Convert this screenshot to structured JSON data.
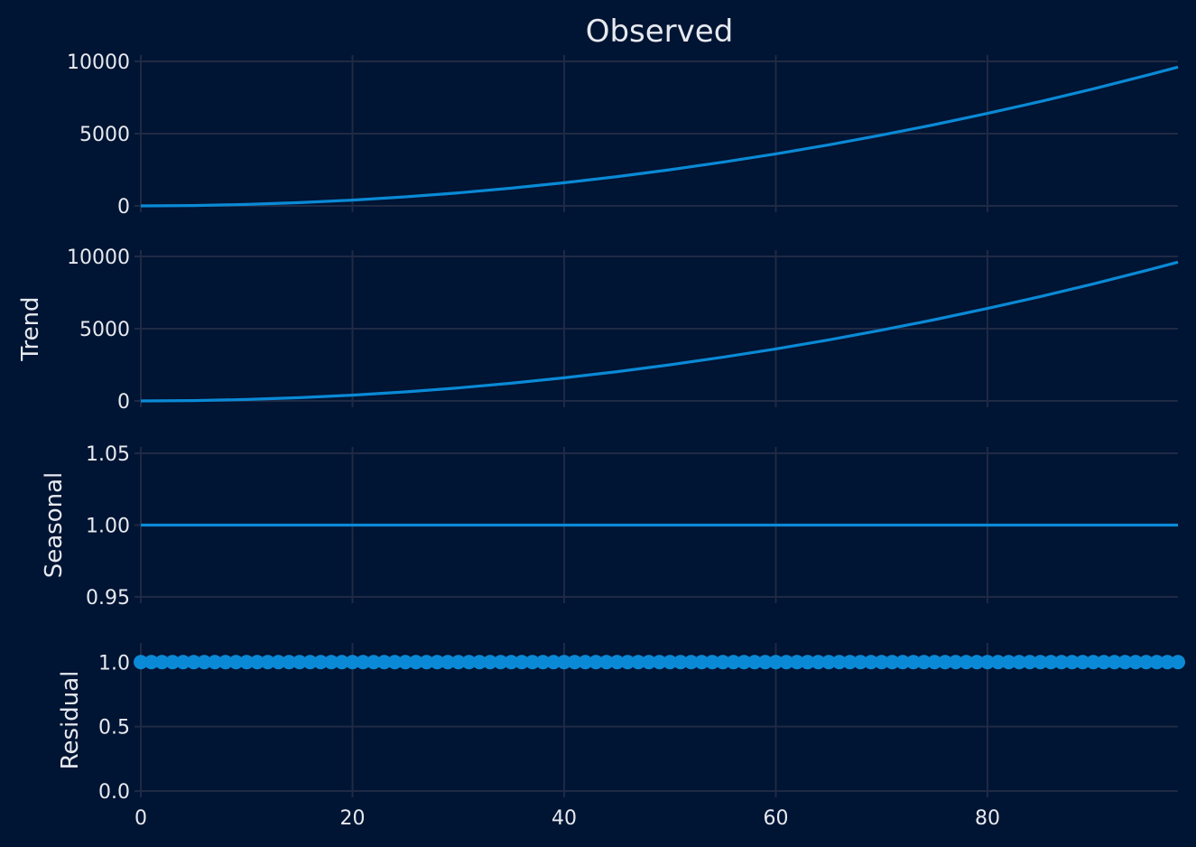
{
  "colors": {
    "background": "#001433",
    "grid": "#1f2a44",
    "series": "#0a8ad6",
    "text": "#e6e9ef"
  },
  "chart_data": {
    "type": "line",
    "layout": "stacked-subplots-shared-x",
    "shared_x": {
      "lim": [
        0,
        98
      ],
      "ticks": [
        0,
        20,
        40,
        60,
        80
      ],
      "tick_labels": [
        "0",
        "20",
        "40",
        "60",
        "80"
      ],
      "label": ""
    },
    "grid": true,
    "legend": "none",
    "panels": [
      {
        "id": "observed",
        "type": "line",
        "title": "Observed",
        "ylabel": "",
        "ylim": [
          0,
          10000
        ],
        "yticks": [
          0,
          5000,
          10000
        ],
        "ytick_labels": [
          "0",
          "5000",
          "10000"
        ],
        "series": [
          {
            "x": [
              0,
              5,
              10,
              15,
              20,
              25,
              30,
              35,
              40,
              45,
              50,
              55,
              60,
              65,
              70,
              75,
              80,
              85,
              90,
              95,
              98
            ],
            "y": [
              0,
              25,
              100,
              225,
              400,
              625,
              900,
              1225,
              1600,
              2025,
              2500,
              3025,
              3600,
              4225,
              4900,
              5625,
              6400,
              7225,
              8100,
              9025,
              9604
            ]
          }
        ]
      },
      {
        "id": "trend",
        "type": "line",
        "title": "",
        "ylabel": "Trend",
        "ylim": [
          0,
          10000
        ],
        "yticks": [
          0,
          5000,
          10000
        ],
        "ytick_labels": [
          "0",
          "5000",
          "10000"
        ],
        "series": [
          {
            "x": [
              0,
              5,
              10,
              15,
              20,
              25,
              30,
              35,
              40,
              45,
              50,
              55,
              60,
              65,
              70,
              75,
              80,
              85,
              90,
              95,
              98
            ],
            "y": [
              0,
              25,
              100,
              225,
              400,
              625,
              900,
              1225,
              1600,
              2025,
              2500,
              3025,
              3600,
              4225,
              4900,
              5625,
              6400,
              7225,
              8100,
              9025,
              9604
            ]
          }
        ]
      },
      {
        "id": "seasonal",
        "type": "line",
        "title": "",
        "ylabel": "Seasonal",
        "ylim": [
          0.95,
          1.05
        ],
        "yticks": [
          0.95,
          1.0,
          1.05
        ],
        "ytick_labels": [
          "0.95",
          "1.00",
          "1.05"
        ],
        "series": [
          {
            "x": [
              0,
              98
            ],
            "y": [
              1.0,
              1.0
            ]
          }
        ]
      },
      {
        "id": "residual",
        "type": "scatter",
        "title": "",
        "ylabel": "Residual",
        "ylim": [
          0.0,
          1.1
        ],
        "yticks": [
          0.0,
          0.5,
          1.0
        ],
        "ytick_labels": [
          "0.0",
          "0.5",
          "1.0"
        ],
        "series": [
          {
            "x_start": 0,
            "x_end": 98,
            "x_step": 1,
            "y": 1.0
          }
        ]
      }
    ]
  }
}
